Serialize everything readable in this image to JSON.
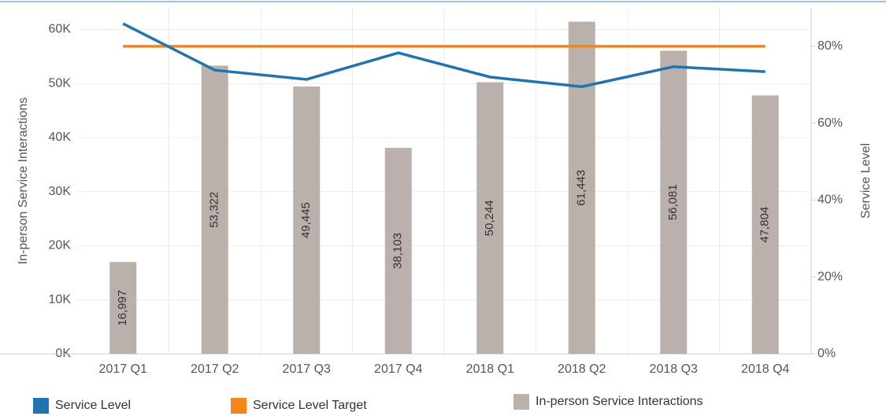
{
  "chart_data": {
    "type": "combo",
    "categories": [
      "2017 Q1",
      "2017 Q2",
      "2017 Q3",
      "2017 Q4",
      "2018 Q1",
      "2018 Q2",
      "2018 Q3",
      "2018 Q4"
    ],
    "series": [
      {
        "name": "In-person Service Interactions",
        "type": "bar",
        "axis": "y",
        "color": "#bab0ac",
        "values": [
          16997,
          53322,
          49445,
          38103,
          50244,
          61443,
          56081,
          47804
        ],
        "value_labels": [
          "16,997",
          "53,322",
          "49,445",
          "38,103",
          "50,244",
          "61,443",
          "56,081",
          "47,804"
        ]
      },
      {
        "name": "Service Level",
        "type": "line",
        "axis": "y2",
        "color": "#2274b0",
        "values": [
          85.9,
          73.8,
          71.4,
          78.3,
          72.0,
          69.5,
          74.7,
          73.4
        ]
      },
      {
        "name": "Service Level Target",
        "type": "line",
        "axis": "y2",
        "color": "#f58518",
        "values": [
          80,
          80,
          80,
          80,
          80,
          80,
          80,
          80
        ]
      }
    ],
    "ylabel": "In-person Service Interactions",
    "y2label": "Service Level",
    "ylim": [
      0,
      64000
    ],
    "yticks": [
      {
        "value": 0,
        "label": "0K"
      },
      {
        "value": 10000,
        "label": "10K"
      },
      {
        "value": 20000,
        "label": "20K"
      },
      {
        "value": 30000,
        "label": "30K"
      },
      {
        "value": 40000,
        "label": "40K"
      },
      {
        "value": 50000,
        "label": "50K"
      },
      {
        "value": 60000,
        "label": "60K"
      }
    ],
    "y2lim": [
      0,
      90
    ],
    "y2ticks": [
      {
        "value": 0,
        "label": "0%"
      },
      {
        "value": 20,
        "label": "20%"
      },
      {
        "value": 40,
        "label": "40%"
      },
      {
        "value": 60,
        "label": "60%"
      },
      {
        "value": 80,
        "label": "80%"
      }
    ],
    "grid": true,
    "legend": "bottom"
  }
}
